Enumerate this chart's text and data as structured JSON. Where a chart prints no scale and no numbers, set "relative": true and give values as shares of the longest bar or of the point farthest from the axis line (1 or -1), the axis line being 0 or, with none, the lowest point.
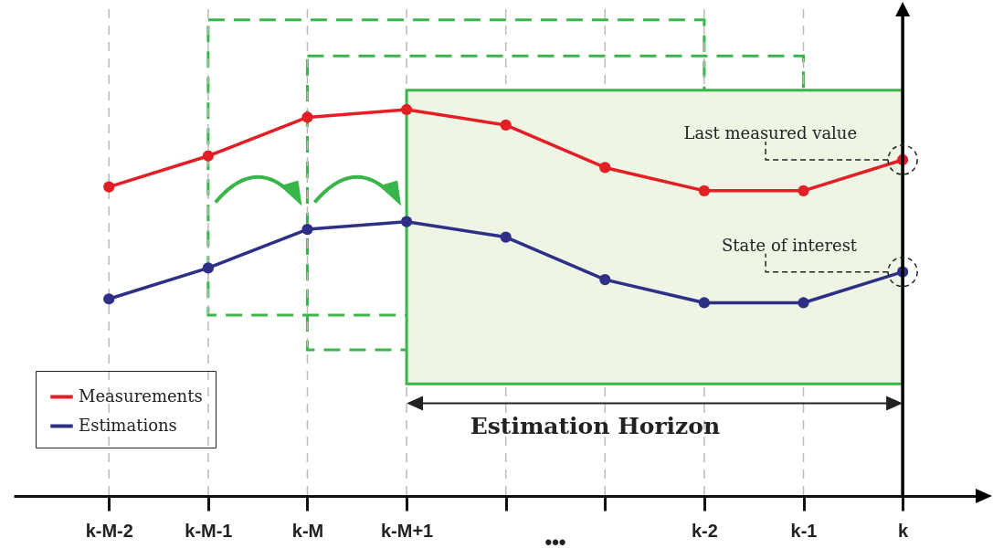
{
  "chart_data": {
    "type": "line",
    "relative": true,
    "categories": [
      "k-M-2",
      "k-M-1",
      "k-M",
      "k-M+1",
      null,
      null,
      "k-2",
      "k-1",
      "k"
    ],
    "series": [
      {
        "name": "Measurements",
        "color": "#e31e24",
        "values": [
          0.8,
          0.88,
          0.98,
          1,
          0.96,
          0.85,
          0.79,
          0.79,
          0.87
        ]
      },
      {
        "name": "Estimations",
        "color": "#2e3087",
        "values": [
          0.51,
          0.59,
          0.69,
          0.71,
          0.67,
          0.56,
          0.5,
          0.5,
          0.58
        ]
      }
    ],
    "marker": "circle",
    "grid": "x",
    "legend": "bottom left",
    "ref_lines": [
      {
        "axis": "x",
        "value": "k",
        "color": "#000000"
      }
    ],
    "bands": [
      {
        "axis": "x",
        "from": "k-M+1",
        "to": "k",
        "label": "Estimation Horizon",
        "color": "#eef5e4"
      }
    ],
    "annotations": [
      "Last measured value",
      "State of interest",
      "•••"
    ]
  }
}
